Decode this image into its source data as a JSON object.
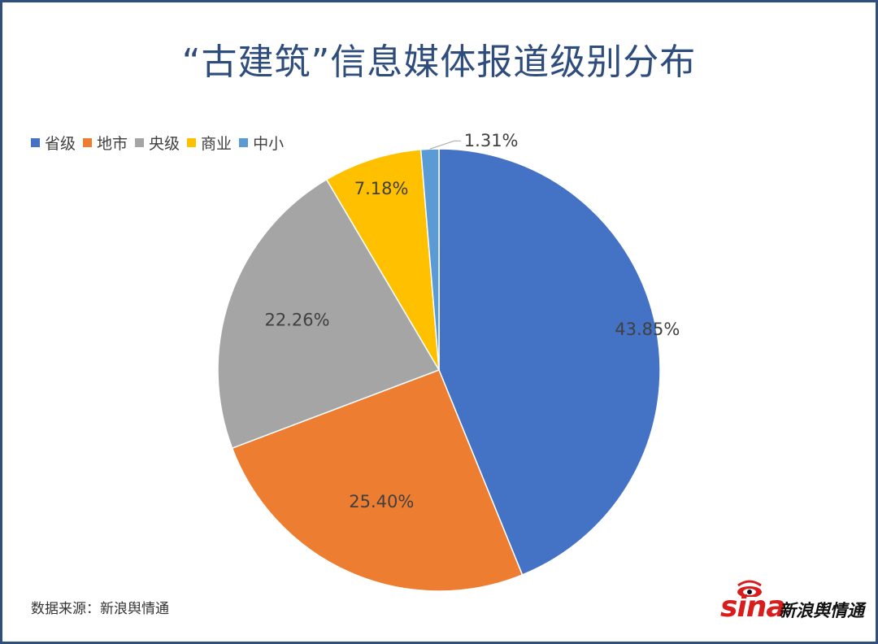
{
  "title": "“古建筑”信息媒体报道级别分布",
  "source": "数据来源：新浪舆情通",
  "logo": {
    "sina": "sina",
    "text": "新浪舆情通"
  },
  "chart_data": {
    "type": "pie",
    "title": "“古建筑”信息媒体报道级别分布",
    "legend_position": "top-left",
    "slices": [
      {
        "label": "省级",
        "value": 43.85,
        "display": "43.85%",
        "color": "#4472c4"
      },
      {
        "label": "地市",
        "value": 25.4,
        "display": "25.40%",
        "color": "#ed7d31"
      },
      {
        "label": "央级",
        "value": 22.26,
        "display": "22.26%",
        "color": "#a5a5a5"
      },
      {
        "label": "商业",
        "value": 7.18,
        "display": "7.18%",
        "color": "#ffc000"
      },
      {
        "label": "中小",
        "value": 1.31,
        "display": "1.31%",
        "color": "#5b9bd5"
      }
    ]
  }
}
